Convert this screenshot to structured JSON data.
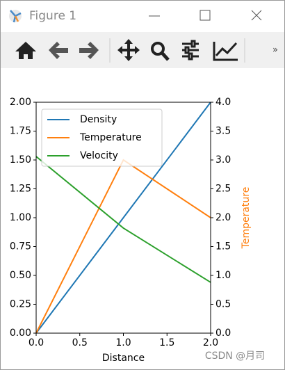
{
  "window": {
    "title": "Figure 1",
    "overflow": "»"
  },
  "watermark": "CSDN @月司",
  "chart_data": {
    "type": "line",
    "x": [
      0,
      1,
      2
    ],
    "xlabel": "Distance",
    "y2label": "Temperature",
    "series": [
      {
        "name": "Density",
        "color": "#1f77b4",
        "values": [
          0,
          1,
          2
        ]
      },
      {
        "name": "Temperature",
        "color": "#ff7f0e",
        "values": [
          0,
          3,
          2
        ],
        "axis": "y2"
      },
      {
        "name": "Velocity",
        "color": "#2ca02c",
        "values": [
          1.53,
          0.91,
          0.44
        ]
      }
    ],
    "xlim": [
      0,
      2
    ],
    "xticks": [
      {
        "value": 0,
        "label": "0.0"
      },
      {
        "value": 0.5,
        "label": "0.5"
      },
      {
        "value": 1,
        "label": "1.0"
      },
      {
        "value": 1.5,
        "label": "1.5"
      },
      {
        "value": 2,
        "label": "2.0"
      }
    ],
    "ylim": [
      0,
      2
    ],
    "yticks": [
      {
        "value": 0,
        "label": "0.00"
      },
      {
        "value": 0.25,
        "label": "0.25"
      },
      {
        "value": 0.5,
        "label": "0.50"
      },
      {
        "value": 0.75,
        "label": "0.75"
      },
      {
        "value": 1,
        "label": "1.00"
      },
      {
        "value": 1.25,
        "label": "1.25"
      },
      {
        "value": 1.5,
        "label": "1.50"
      },
      {
        "value": 1.75,
        "label": "1.75"
      },
      {
        "value": 2,
        "label": "2.00"
      }
    ],
    "y2lim": [
      0,
      4
    ],
    "y2ticks": [
      {
        "value": 0,
        "label": "0.0"
      },
      {
        "value": 0.5,
        "label": "0.5"
      },
      {
        "value": 1,
        "label": "1.0"
      },
      {
        "value": 1.5,
        "label": "1.5"
      },
      {
        "value": 2,
        "label": "2.0"
      },
      {
        "value": 2.5,
        "label": "2.5"
      },
      {
        "value": 3,
        "label": "3.0"
      },
      {
        "value": 3.5,
        "label": "3.5"
      },
      {
        "value": 4,
        "label": "4.0"
      }
    ],
    "legend": "upper left",
    "grid": false
  }
}
